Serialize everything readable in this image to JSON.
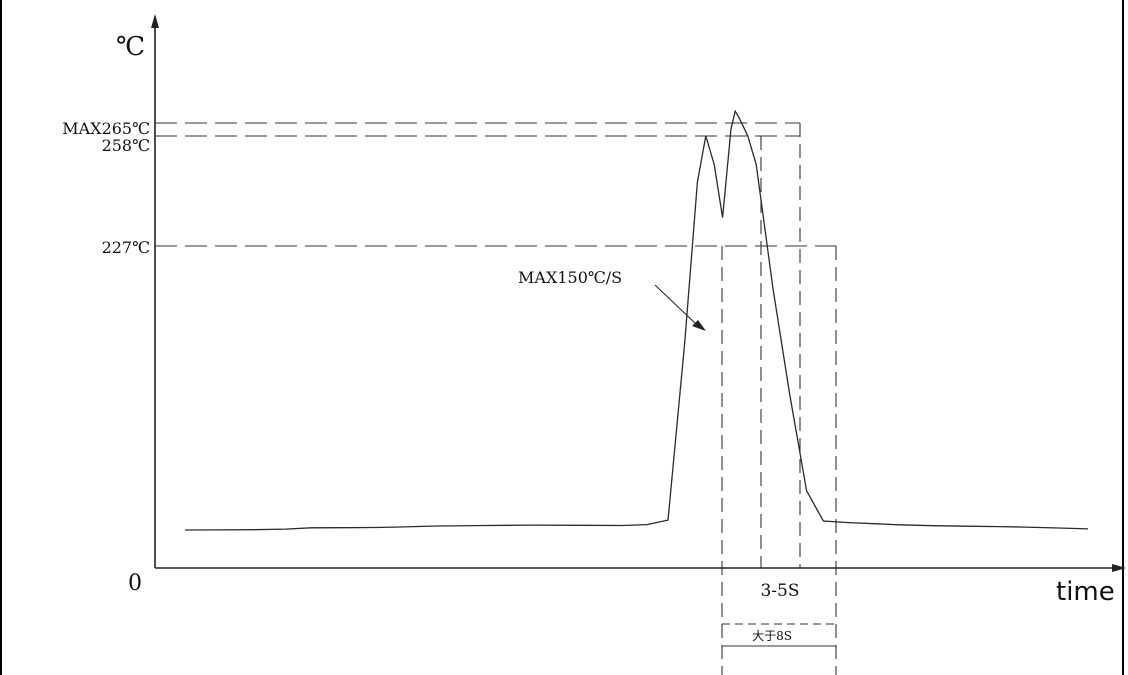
{
  "chart_data": {
    "type": "line",
    "title": "",
    "ylabel": "℃",
    "xlabel": "time",
    "origin_label": "0",
    "grid": false,
    "colors": {
      "line": "#2a2a2a",
      "axis": "#222222",
      "dashed": "#333333"
    },
    "y_reference_lines": [
      {
        "label": "MAX265℃",
        "value": 265
      },
      {
        "label": "258℃",
        "value": 258
      },
      {
        "label": "227℃",
        "value": 227
      }
    ],
    "annotations": {
      "ramp_rate": "MAX150℃/S",
      "peak_window": "3-5S",
      "above_227_window": "大于8S"
    },
    "series": [
      {
        "x": [
          0,
          8,
          16,
          24,
          30,
          38,
          45,
          50,
          60,
          72,
          82,
          94,
          104,
          110,
          115,
          119,
          122,
          124,
          126,
          128,
          130,
          131,
          132,
          134,
          136,
          140,
          144,
          148,
          152,
          158,
          164,
          170,
          178,
          186,
          194,
          200,
          208,
          215
        ],
        "y": [
          30,
          31,
          33,
          40,
          55,
          56,
          58,
          62,
          75,
          80,
          85,
          82,
          80,
          90,
          140,
          200,
          245,
          258,
          250,
          235,
          260,
          265,
          263,
          258,
          250,
          215,
          185,
          158,
          130,
          112,
          100,
          88,
          78,
          72,
          68,
          62,
          52,
          42
        ]
      }
    ]
  }
}
